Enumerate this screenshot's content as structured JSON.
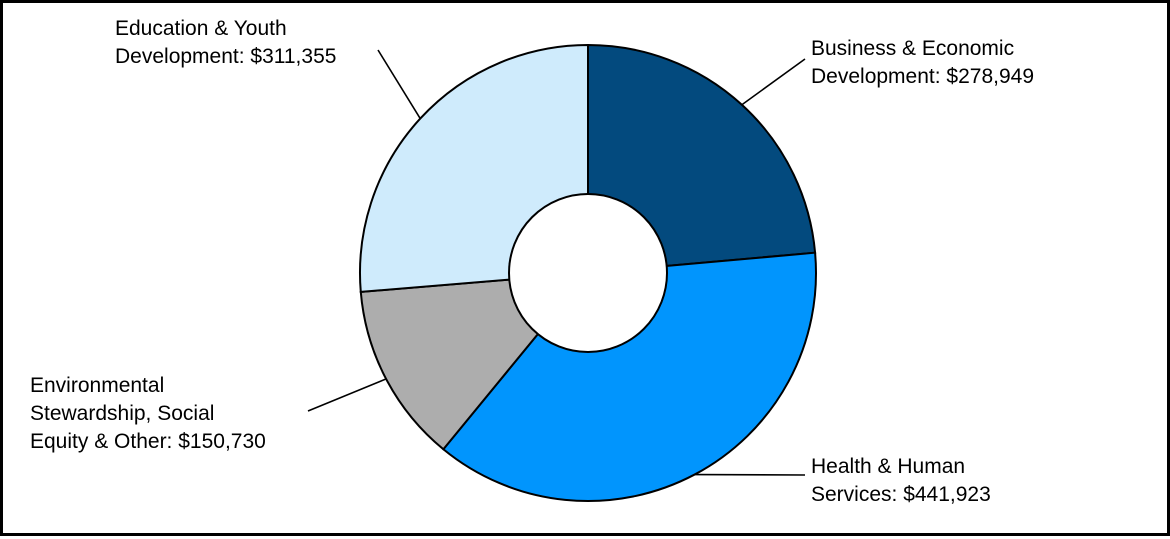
{
  "chart_data": {
    "type": "pie",
    "variant": "donut",
    "currency": "$",
    "slices": [
      {
        "label_lines": [
          "Business & Economic",
          "Development: $278,949"
        ],
        "name": "Business & Economic Development",
        "value": 278949,
        "color": "#034a7e"
      },
      {
        "label_lines": [
          "Health & Human",
          "Services: $441,923"
        ],
        "name": "Health & Human Services",
        "value": 441923,
        "color": "#0195fd"
      },
      {
        "label_lines": [
          "Environmental",
          "Stewardship, Social",
          "Equity & Other: $150,730"
        ],
        "name": "Environmental Stewardship, Social Equity & Other",
        "value": 150730,
        "color": "#adadad"
      },
      {
        "label_lines": [
          "Education & Youth",
          "Development: $311,355"
        ],
        "name": "Education & Youth Development",
        "value": 311355,
        "color": "#cfebfc"
      }
    ]
  }
}
